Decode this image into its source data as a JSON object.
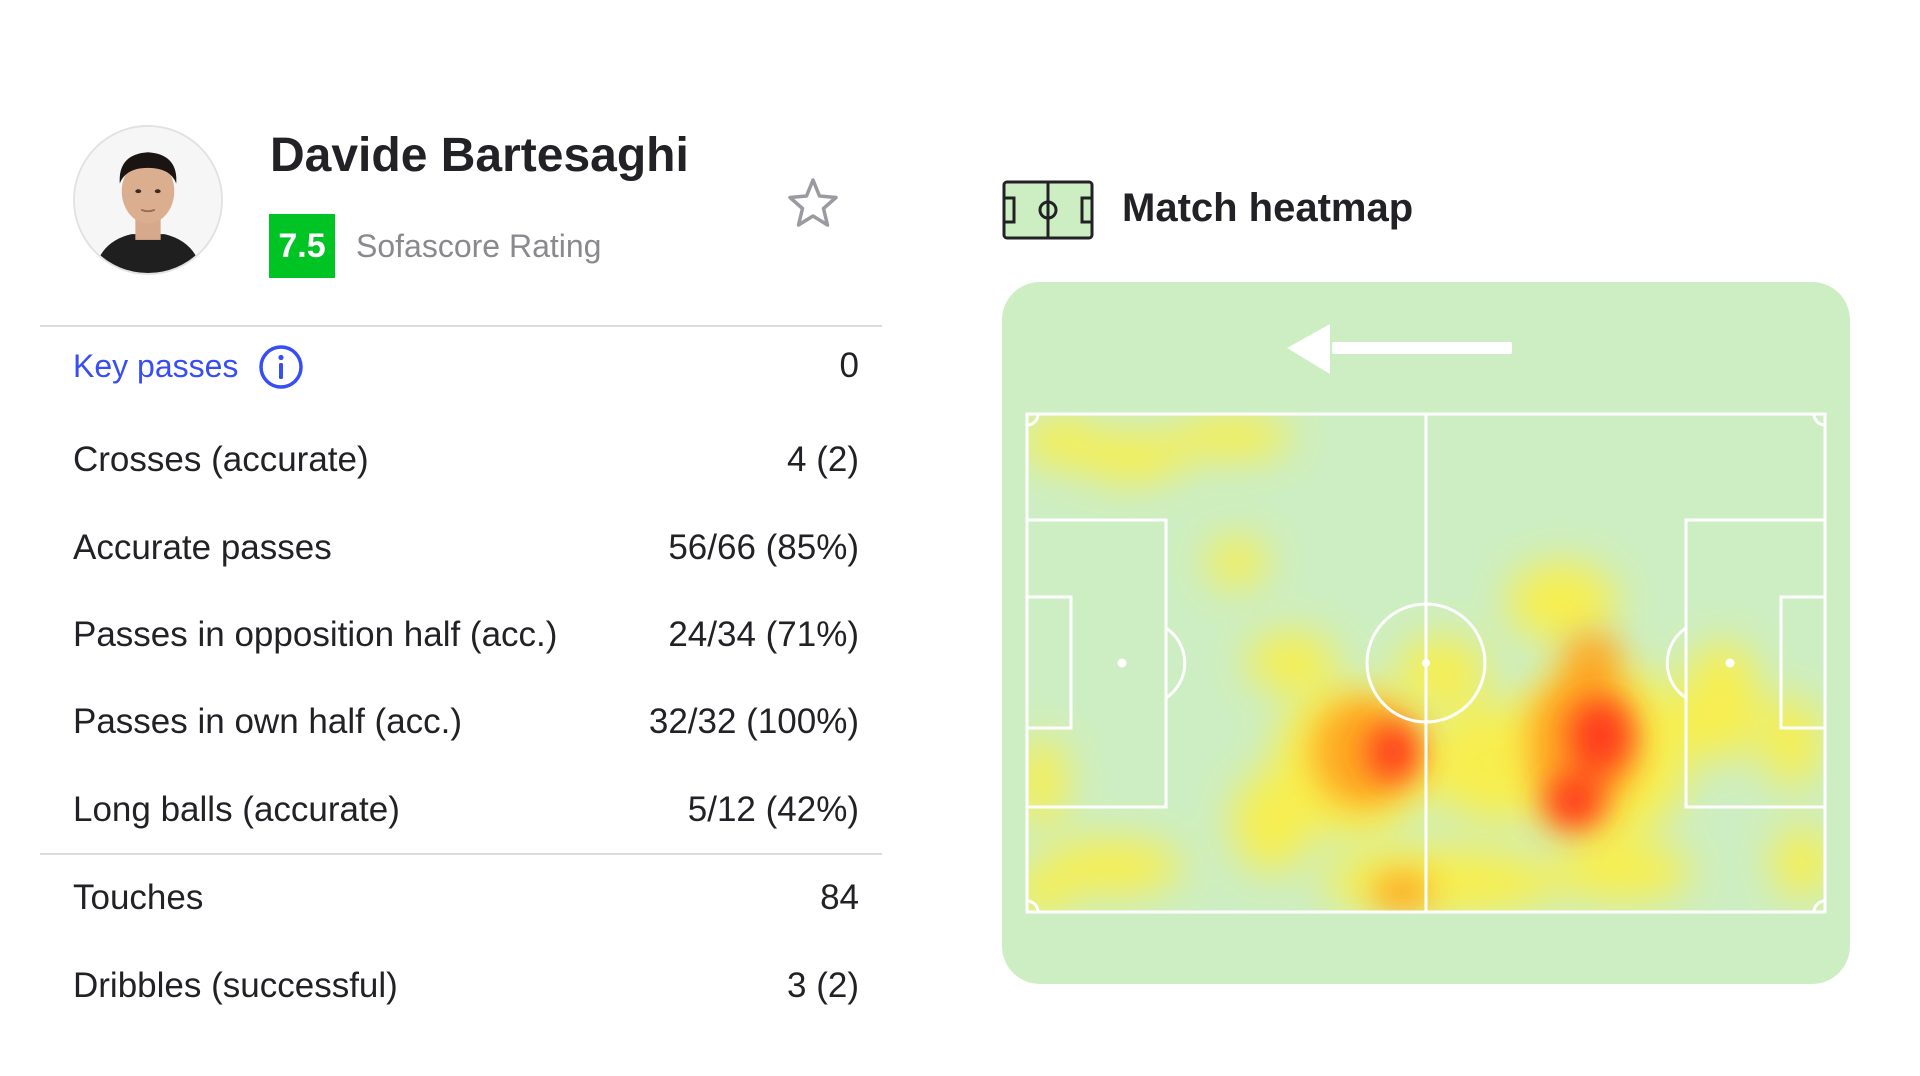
{
  "player": {
    "name": "Davide Bartesaghi",
    "rating": "7.5",
    "rating_label": "Sofascore Rating",
    "rating_color": "#00c424"
  },
  "icons": {
    "favorite": "star-outline-icon",
    "info": "info-circle-icon",
    "heatmap": "pitch-icon",
    "direction": "arrow-left-icon"
  },
  "stats": {
    "key_passes": {
      "label": "Key passes",
      "value": "0"
    },
    "rows": [
      {
        "label": "Crosses (accurate)",
        "value": "4 (2)"
      },
      {
        "label": "Accurate passes",
        "value": "56/66 (85%)"
      },
      {
        "label": "Passes in opposition half (acc.)",
        "value": "24/34 (71%)"
      },
      {
        "label": "Passes in own half (acc.)",
        "value": "32/32 (100%)"
      },
      {
        "label": "Long balls (accurate)",
        "value": "5/12 (42%)"
      }
    ],
    "extra_rows": [
      {
        "label": "Touches",
        "value": "84"
      },
      {
        "label": "Dribbles (successful)",
        "value": "3 (2)"
      }
    ]
  },
  "heatmap": {
    "title": "Match heatmap",
    "attack_direction": "left",
    "pitch_color": "#cdeec2",
    "hot_color": "#ff2a1a",
    "warm_color": "#ffee33"
  }
}
